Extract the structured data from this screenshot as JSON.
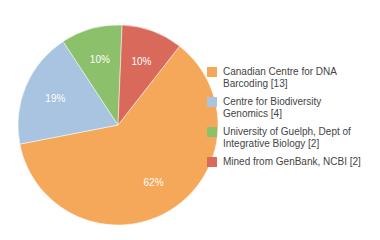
{
  "chart_data": {
    "type": "pie",
    "categories": [
      "Canadian Centre for DNA\nBarcoding [13]",
      "Centre for Biodiversity\nGenomics [4]",
      "University of Guelph, Dept of\nIntegrative Biology [2]",
      "Mined from GenBank, NCBI [2]"
    ],
    "values": [
      62,
      19,
      10,
      10
    ],
    "value_labels": [
      "62%",
      "19%",
      "10%",
      "10%"
    ],
    "colors": [
      "#F5A85A",
      "#A8C4E0",
      "#8DC06A",
      "#D9695A"
    ],
    "data_labels": true,
    "legend": "right"
  }
}
